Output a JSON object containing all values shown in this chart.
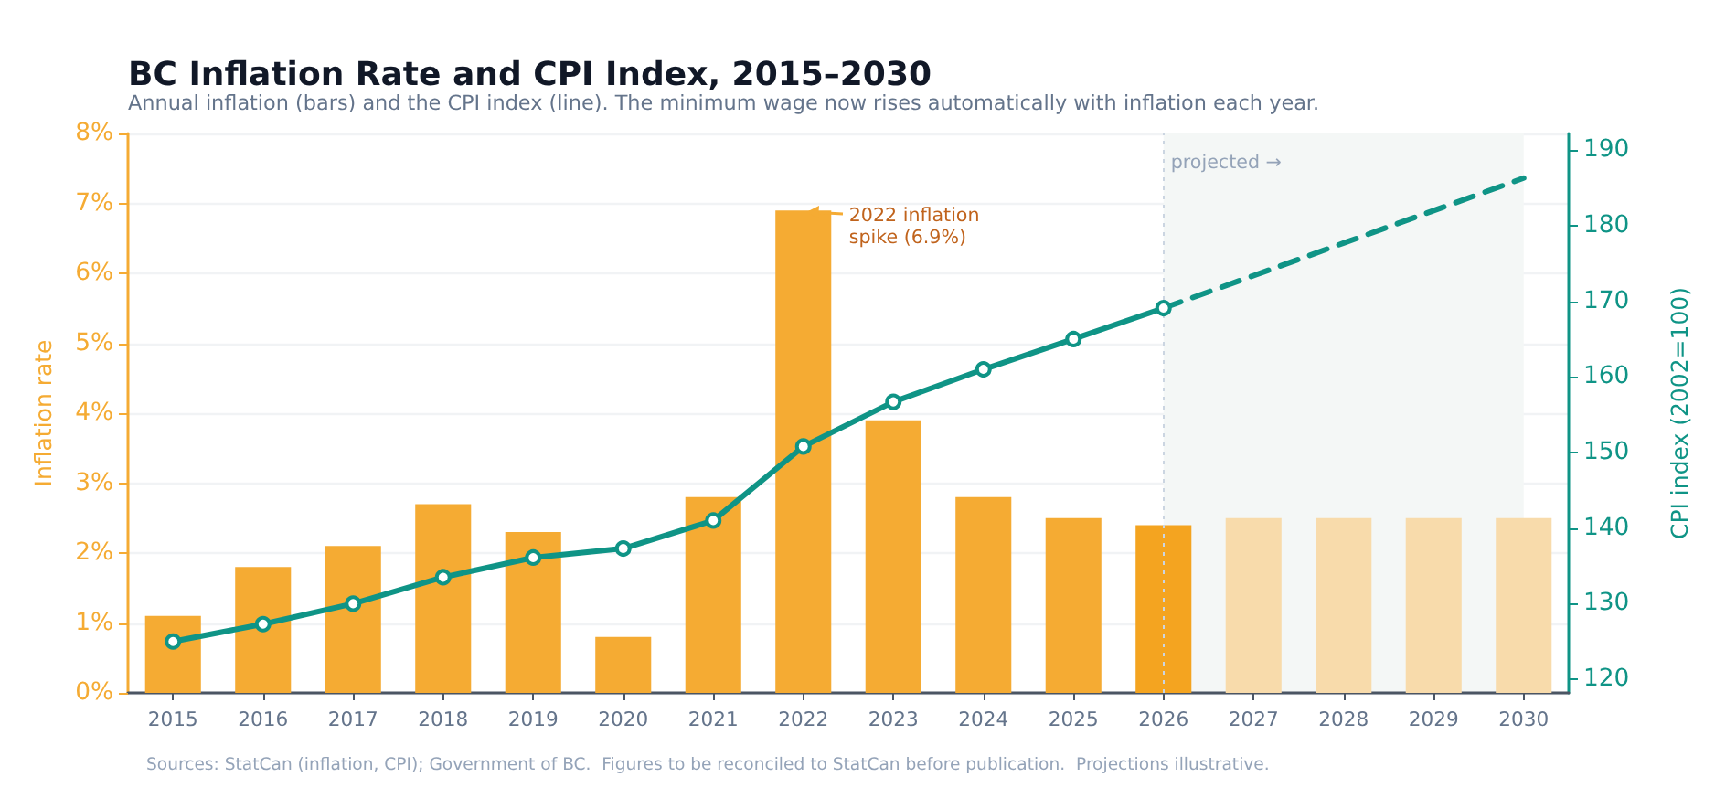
{
  "chart_data": {
    "type": "bar",
    "title": "BC Inflation Rate and CPI Index, 2015–2030",
    "subtitle": "Annual inflation (bars) and the CPI index (line). The minimum wage now rises automatically with inflation each year.",
    "ylabel": "Inflation rate",
    "y2label": "CPI index (2002=100)",
    "categories": [
      "2015",
      "2016",
      "2017",
      "2018",
      "2019",
      "2020",
      "2021",
      "2022",
      "2023",
      "2024",
      "2025",
      "2026",
      "2027",
      "2028",
      "2029",
      "2030"
    ],
    "series": [
      {
        "values": [
          1.1,
          1.8,
          2.1,
          2.7,
          2.3,
          0.8,
          2.8,
          6.9,
          3.9,
          2.8,
          2.5,
          2.4,
          2.5,
          2.5,
          2.5,
          2.5
        ],
        "colors": [
          "#f5ab33",
          "#f5ab33",
          "#f5ab33",
          "#f5ab33",
          "#f5ab33",
          "#f5ab33",
          "#f5ab33",
          "#f5ab33",
          "#f5ab33",
          "#f5ab33",
          "#f5ab33",
          "#f4a420",
          "#f8dbab",
          "#f8dbab",
          "#f8dbab",
          "#f8dbab"
        ]
      },
      {
        "type": "line",
        "axis": "y2",
        "color": "#0f9486",
        "marker": "circle",
        "line_style": "solid",
        "values": [
          125.0,
          127.3,
          130.0,
          133.5,
          136.1,
          137.3,
          141.0,
          150.8,
          156.7,
          161.0,
          165.0,
          169.1,
          null,
          null,
          null,
          null
        ]
      },
      {
        "type": "line",
        "axis": "y2",
        "color": "#0f9486",
        "marker": "none",
        "line_style": "dashed",
        "values": [
          null,
          null,
          null,
          null,
          null,
          null,
          null,
          null,
          null,
          null,
          null,
          169.1,
          173.4,
          177.7,
          182.0,
          186.3
        ]
      }
    ],
    "ylim": [
      0,
      8
    ],
    "yticks": [
      {
        "value": 0,
        "label": "0%"
      },
      {
        "value": 1,
        "label": "1%"
      },
      {
        "value": 2,
        "label": "2%"
      },
      {
        "value": 3,
        "label": "3%"
      },
      {
        "value": 4,
        "label": "4%"
      },
      {
        "value": 5,
        "label": "5%"
      },
      {
        "value": 6,
        "label": "6%"
      },
      {
        "value": 7,
        "label": "7%"
      },
      {
        "value": 8,
        "label": "8%"
      }
    ],
    "y2lim": [
      118.2,
      192.2
    ],
    "y2ticks": [
      120,
      130,
      140,
      150,
      160,
      170,
      180,
      190
    ],
    "grid": "y",
    "ref_lines": [
      {
        "axis": "x",
        "value": "2026",
        "label": "projected →",
        "color": "#cbd5e1",
        "line_style": "dotted"
      }
    ],
    "bands": [
      {
        "axis": "x",
        "from": "2026",
        "to": "2030",
        "color": "#f4f7f6"
      }
    ],
    "annotations": [
      {
        "text": "2022 inflation\nspike (6.9%)",
        "x": "2022",
        "y": 6.9
      },
      "Sources: StatCan (inflation, CPI); Government of BC.  Figures to be reconciled to StatCan before publication.  Projections illustrative."
    ]
  }
}
